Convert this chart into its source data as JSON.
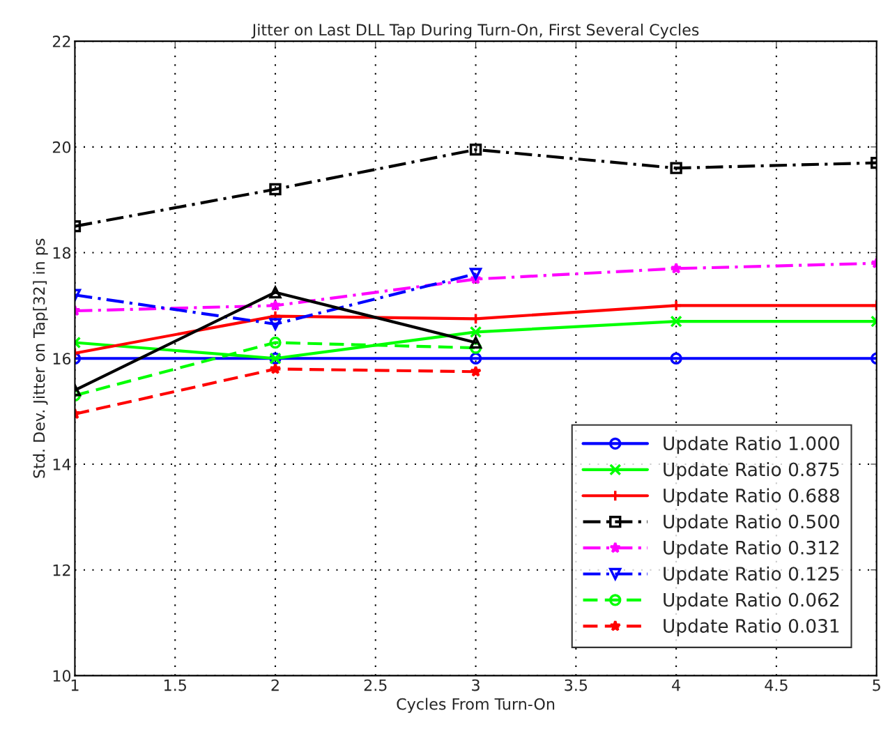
{
  "chart_data": {
    "type": "line",
    "title": "Jitter on Last DLL Tap During Turn-On, First Several Cycles",
    "xlabel": "Cycles From Turn-On",
    "ylabel": "Std. Dev. Jitter on Tap[32] in ps",
    "xlim": [
      1,
      5
    ],
    "xticks": [
      1,
      1.5,
      2,
      2.5,
      3,
      3.5,
      4,
      4.5,
      5
    ],
    "ylim": [
      10,
      22
    ],
    "yticks": [
      10,
      12,
      14,
      16,
      18,
      20,
      22
    ],
    "grid": true,
    "legend": "bottom right",
    "series": [
      {
        "name": "Update Ratio 1.000",
        "color": "#0000ff",
        "marker": "circle",
        "line_style": "solid",
        "x": [
          1,
          2,
          3,
          4,
          5
        ],
        "values": [
          16.0,
          16.0,
          16.0,
          16.0,
          16.0
        ]
      },
      {
        "name": "Update Ratio 0.875",
        "color": "#00ff00",
        "marker": "cross",
        "line_style": "solid",
        "x": [
          1,
          2,
          3,
          4,
          5
        ],
        "values": [
          16.3,
          16.0,
          16.5,
          16.7,
          16.7
        ]
      },
      {
        "name": "Update Ratio 0.688",
        "color": "#ff0000",
        "marker": "plus",
        "line_style": "solid",
        "x": [
          1,
          2,
          3,
          4,
          5
        ],
        "values": [
          16.1,
          16.8,
          16.75,
          17.0,
          17.0
        ]
      },
      {
        "name": "Update Ratio 0.500",
        "color": "#000000",
        "marker": "square",
        "line_style": "dashdot",
        "x": [
          1,
          2,
          3,
          4,
          5
        ],
        "values": [
          18.5,
          19.2,
          19.95,
          19.6,
          19.7
        ]
      },
      {
        "name": "Update Ratio 0.312",
        "color": "#ff00ff",
        "marker": "star",
        "line_style": "dashdot",
        "x": [
          1,
          2,
          3,
          4,
          5
        ],
        "values": [
          16.9,
          17.0,
          17.5,
          17.7,
          17.8
        ]
      },
      {
        "name": "Update Ratio 0.125",
        "color": "#0000ff",
        "marker": "triangle_down",
        "line_style": "dashdot",
        "x": [
          1,
          2,
          3
        ],
        "values": [
          17.2,
          16.65,
          17.6
        ]
      },
      {
        "name": "Update Ratio 0.062",
        "color": "#00ff00",
        "marker": "circle",
        "line_style": "dashed",
        "x": [
          1,
          2,
          3
        ],
        "values": [
          15.3,
          16.3,
          16.2
        ]
      },
      {
        "name": "Update Ratio 0.031",
        "color": "#ff0000",
        "marker": "star",
        "line_style": "dashed",
        "x": [
          1,
          2,
          3
        ],
        "values": [
          14.95,
          15.8,
          15.75
        ]
      },
      {
        "color": "#000000",
        "marker": "triangle",
        "line_style": "solid",
        "x": [
          1,
          2,
          3
        ],
        "values": [
          15.4,
          17.25,
          16.3
        ]
      }
    ]
  }
}
